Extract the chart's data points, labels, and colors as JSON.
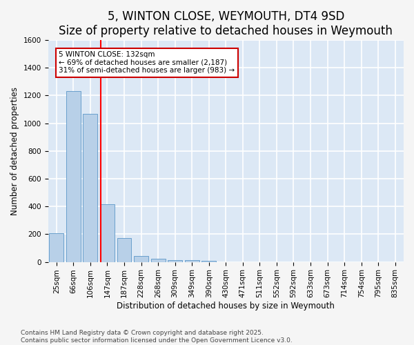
{
  "title": "5, WINTON CLOSE, WEYMOUTH, DT4 9SD",
  "subtitle": "Size of property relative to detached houses in Weymouth",
  "xlabel": "Distribution of detached houses by size in Weymouth",
  "ylabel": "Number of detached properties",
  "categories": [
    "25sqm",
    "66sqm",
    "106sqm",
    "147sqm",
    "187sqm",
    "228sqm",
    "268sqm",
    "309sqm",
    "349sqm",
    "390sqm",
    "430sqm",
    "471sqm",
    "511sqm",
    "552sqm",
    "592sqm",
    "633sqm",
    "673sqm",
    "714sqm",
    "754sqm",
    "795sqm",
    "835sqm"
  ],
  "values": [
    205,
    1230,
    1070,
    415,
    170,
    45,
    25,
    12,
    12,
    10,
    0,
    0,
    0,
    0,
    0,
    0,
    0,
    0,
    0,
    0,
    0
  ],
  "bar_color": "#b8d0e8",
  "bar_edge_color": "#6aa0cc",
  "background_color": "#dce8f5",
  "grid_color": "#ffffff",
  "annotation_text": "5 WINTON CLOSE: 132sqm\n← 69% of detached houses are smaller (2,187)\n31% of semi-detached houses are larger (983) →",
  "annotation_box_color": "#ffffff",
  "annotation_border_color": "#cc0000",
  "ylim": [
    0,
    1600
  ],
  "yticks": [
    0,
    200,
    400,
    600,
    800,
    1000,
    1200,
    1400,
    1600
  ],
  "footer_text": "Contains HM Land Registry data © Crown copyright and database right 2025.\nContains public sector information licensed under the Open Government Licence v3.0.",
  "title_fontsize": 12,
  "subtitle_fontsize": 10,
  "axis_label_fontsize": 8.5,
  "tick_fontsize": 7.5,
  "footer_fontsize": 6.5,
  "fig_background": "#f5f5f5"
}
